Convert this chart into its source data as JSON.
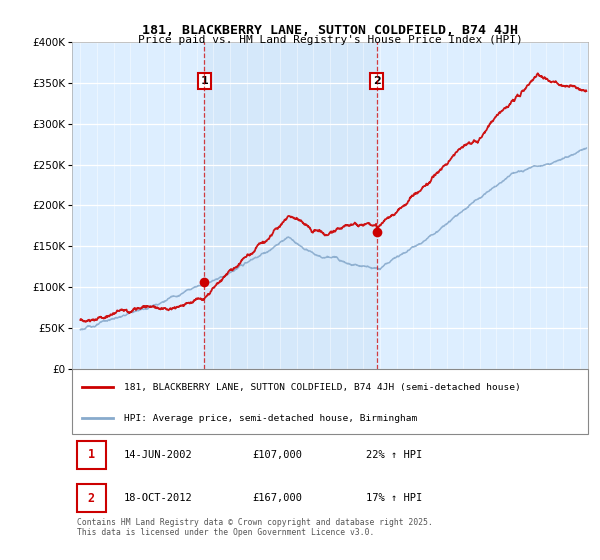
{
  "title": "181, BLACKBERRY LANE, SUTTON COLDFIELD, B74 4JH",
  "subtitle": "Price paid vs. HM Land Registry's House Price Index (HPI)",
  "legend_label_red": "181, BLACKBERRY LANE, SUTTON COLDFIELD, B74 4JH (semi-detached house)",
  "legend_label_blue": "HPI: Average price, semi-detached house, Birmingham",
  "footer": "Contains HM Land Registry data © Crown copyright and database right 2025.\nThis data is licensed under the Open Government Licence v3.0.",
  "sale1": {
    "label": "1",
    "date": "14-JUN-2002",
    "price": "£107,000",
    "hpi": "22% ↑ HPI",
    "x_year": 2002.45
  },
  "sale2": {
    "label": "2",
    "date": "18-OCT-2012",
    "price": "£167,000",
    "hpi": "17% ↑ HPI",
    "x_year": 2012.8
  },
  "vline1_x": 2002.45,
  "vline2_x": 2012.8,
  "ylim": [
    0,
    400000
  ],
  "ytick_max": 400000,
  "ytick_step": 50000,
  "xlim_start": 1994.5,
  "xlim_end": 2025.5,
  "red_color": "#cc0000",
  "blue_color": "#88aacc",
  "shade_color": "#d0e4f7",
  "background_color": "#ddeeff",
  "plot_bg": "#ffffff",
  "sale1_marker_x": 2002.45,
  "sale1_marker_y": 107000,
  "sale2_marker_x": 2012.8,
  "sale2_marker_y": 167000,
  "figsize": [
    6.0,
    5.6
  ],
  "dpi": 100
}
